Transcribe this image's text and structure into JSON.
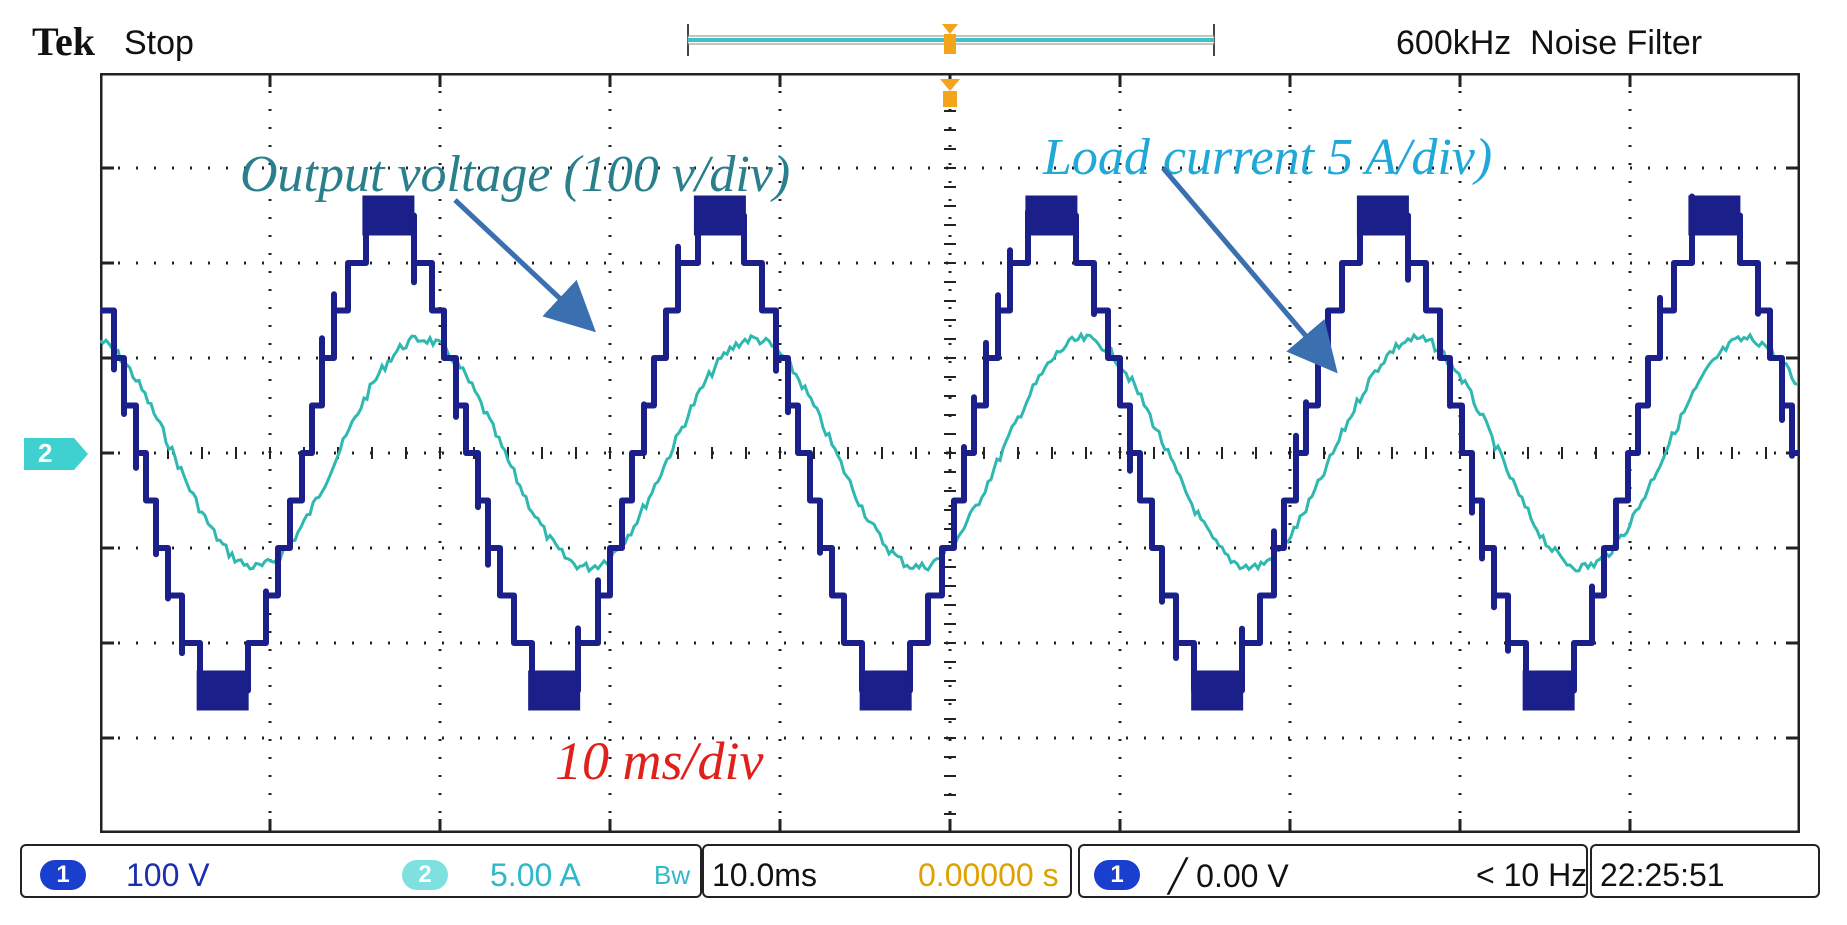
{
  "header": {
    "brand": "Tek",
    "acq_state": "Stop",
    "filter": "600kHz  Noise Filter"
  },
  "annotations": {
    "voltage_label": "Output voltage (100 v/div)",
    "current_label": "Load current 5 A/div)",
    "timebase_label": "10 ms/div"
  },
  "colors": {
    "ch1": "#1a1f8a",
    "ch2": "#2fb8b0",
    "voltage_annotation": "#2a7f8c",
    "current_annotation": "#1fa8d8",
    "timebase_annotation": "#e0201a",
    "arrow": "#3a6fb0",
    "trigger_marker": "#f2a51a",
    "grid": "#222222",
    "status_time_offset": "#e0a000"
  },
  "screen_marker": {
    "ch2_ground_label": "2"
  },
  "statusbar": {
    "ch1_badge": "1",
    "ch1_scale": "100 V",
    "ch2_badge": "2",
    "ch2_scale": "5.00 A",
    "bw_icon": "Bᴡ",
    "timebase": "10.0ms",
    "time_offset": "0.00000 s",
    "trig_badge": "1",
    "trig_level": "╱ 0.00 V",
    "trig_freq": "< 10 Hz",
    "clock": "22:25:51"
  },
  "chart_data": {
    "type": "line",
    "grid": {
      "horizontal_divisions": 10,
      "vertical_divisions": 8
    },
    "series": [
      {
        "name": "Output voltage (100 v/div)",
        "waveform": "stepped multilevel sine",
        "amplitude_div": 2.5,
        "period_div": 1.95,
        "offset_div": 0,
        "steps": 5
      },
      {
        "name": "Load current 5 A/div)",
        "waveform": "sine",
        "amplitude_div": 1.2,
        "period_div": 1.95,
        "offset_div": 0
      }
    ]
  }
}
